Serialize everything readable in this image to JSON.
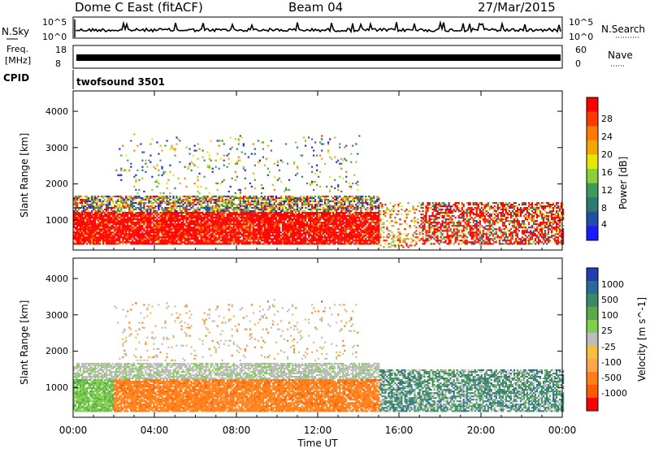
{
  "header": {
    "station": "Dome C East (fitACF)",
    "beam": "Beam 04",
    "date": "27/Mar/2015"
  },
  "top_panels": {
    "nsky_label": "N.Sky",
    "nsky_top_tick": "10^5",
    "nsky_bottom_tick": "10^0",
    "nsearch_label": "N.Search",
    "nsearch_top_tick": "10^5",
    "nsearch_bottom_tick": "10^0",
    "freq_label": "Freq.",
    "freq_unit": "[MHz]",
    "freq_ticks": [
      "18",
      "8"
    ],
    "nave_label": "Nave",
    "nave_ticks": [
      "60",
      "0"
    ],
    "cpid_label": "CPID",
    "cpid_value": "twofsound 3501"
  },
  "axes": {
    "xlabel": "Time UT",
    "x_ticks": [
      "00:00",
      "04:00",
      "08:00",
      "12:00",
      "16:00",
      "20:00",
      "00:00"
    ],
    "ylabel": "Slant Range [km]",
    "y_ticks": [
      "1000",
      "2000",
      "3000",
      "4000"
    ]
  },
  "colorbars": {
    "power": {
      "label": "Power [dB]",
      "ticks": [
        "28",
        "24",
        "20",
        "16",
        "12",
        "8",
        "4"
      ],
      "colors": [
        "#ff0000",
        "#ff3a00",
        "#ff7a00",
        "#f2a800",
        "#e6e600",
        "#8ccf3a",
        "#3d9b5a",
        "#2f7a6e",
        "#1f4fa6",
        "#1a1aff"
      ]
    },
    "velocity": {
      "label": "Velocity [m s^-1]",
      "ticks": [
        "1000",
        "500",
        "100",
        "25",
        "-25",
        "-100",
        "-500",
        "-1000"
      ],
      "colors": [
        "#1f3fb0",
        "#2a6a9a",
        "#3a8a6a",
        "#5aa84a",
        "#7fd04a",
        "#bdbdbd",
        "#f0c040",
        "#ffa64d",
        "#ff7f1a",
        "#ff5a00",
        "#ff0000"
      ]
    }
  },
  "chart_data": [
    {
      "type": "heatmap",
      "title": "Power",
      "xlabel": "Time UT",
      "ylabel": "Slant Range [km]",
      "xlim": [
        0,
        24
      ],
      "ylim": [
        180,
        4560
      ],
      "colorbar": {
        "label": "Power [dB]",
        "range": [
          0,
          32
        ]
      },
      "bands": [
        {
          "t0": 0,
          "t1": 15,
          "r0": 300,
          "r1": 1200,
          "level": "high"
        },
        {
          "t0": 0,
          "t1": 15,
          "r0": 1200,
          "r1": 1600,
          "level": "mixed"
        },
        {
          "t0": 17,
          "t1": 24,
          "r0": 300,
          "r1": 1500,
          "level": "mixed"
        },
        {
          "t0": 2,
          "t1": 14,
          "r0": 1800,
          "r1": 3300,
          "level": "scattered"
        }
      ]
    },
    {
      "type": "heatmap",
      "title": "Velocity",
      "xlabel": "Time UT",
      "ylabel": "Slant Range [km]",
      "xlim": [
        0,
        24
      ],
      "ylim": [
        180,
        4560
      ],
      "colorbar": {
        "label": "Velocity [m s^-1]",
        "range": [
          -1000,
          1000
        ]
      },
      "bands": [
        {
          "t0": 0,
          "t1": 15,
          "r0": 300,
          "r1": 1200,
          "level": "negative"
        },
        {
          "t0": 0,
          "t1": 15,
          "r0": 1200,
          "r1": 1600,
          "level": "near-zero"
        },
        {
          "t0": 15,
          "t1": 24,
          "r0": 300,
          "r1": 1500,
          "level": "positive-mixed"
        },
        {
          "t0": 2,
          "t1": 14,
          "r0": 1800,
          "r1": 3300,
          "level": "scattered"
        }
      ]
    }
  ]
}
